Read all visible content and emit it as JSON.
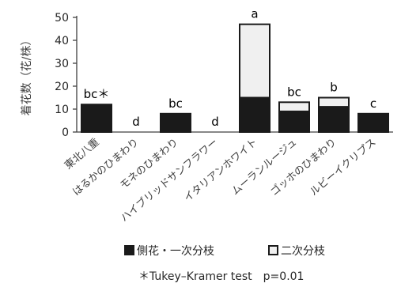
{
  "chart_data": {
    "type": "bar",
    "stacked": true,
    "categories": [
      "東北八重",
      "はるかのひまわり",
      "モネのひまわり",
      "ハイブリッドサンフラワー",
      "イタリアンホワイト",
      "ムーランルージュ",
      "ゴッホのひまわり",
      "ルビーイクリプス"
    ],
    "series": [
      {
        "name": "側花・一次分枝",
        "values": [
          12,
          0,
          8,
          0,
          15,
          9,
          11,
          8
        ],
        "color": "#1a1a1a"
      },
      {
        "name": "二次分枝",
        "values": [
          0,
          0,
          0,
          0,
          32,
          4,
          4,
          0
        ],
        "color": "#f0f0f0"
      }
    ],
    "significance": [
      "bc＊",
      "d",
      "bc",
      "d",
      "a",
      "bc",
      "b",
      "c"
    ],
    "ylabel": "着花数（花/株）",
    "ylim": [
      0,
      50
    ],
    "yticks": [
      "0",
      "10",
      "20",
      "30",
      "40",
      "50"
    ],
    "grid": false,
    "legend_position": "bottom",
    "note": "＊Tukey–Kramer test　p=0.01"
  }
}
